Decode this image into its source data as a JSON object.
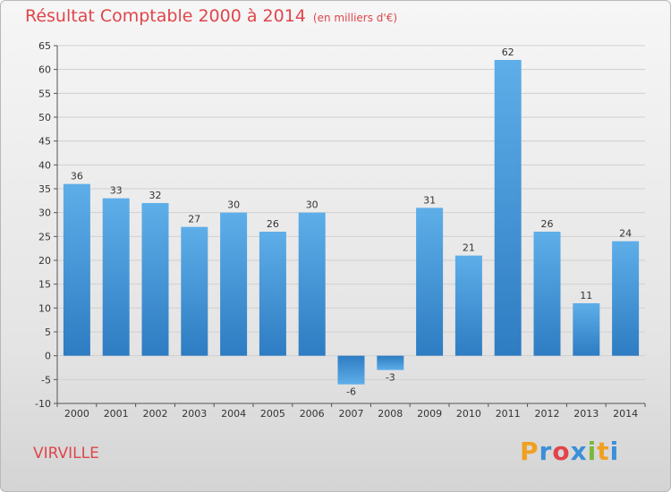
{
  "chart_data": {
    "type": "bar",
    "title": "Résultat Comptable 2000 à 2014",
    "subtitle": "(en milliers d'€)",
    "categories": [
      "2000",
      "2001",
      "2002",
      "2003",
      "2004",
      "2005",
      "2006",
      "2007",
      "2008",
      "2009",
      "2010",
      "2011",
      "2012",
      "2013",
      "2014"
    ],
    "values": [
      36,
      33,
      32,
      27,
      30,
      26,
      30,
      -6,
      -3,
      31,
      21,
      62,
      26,
      11,
      24
    ],
    "ylim": [
      -10,
      65
    ],
    "yticks": [
      -10,
      -5,
      0,
      5,
      10,
      15,
      20,
      25,
      30,
      35,
      40,
      45,
      50,
      55,
      60,
      65
    ],
    "grid": true,
    "bar_color": "#3a8fd8",
    "title_color": "#e0454b"
  },
  "commune": "VIRVILLE",
  "logo": {
    "text": "Proxiti",
    "letters": [
      "P",
      "r",
      "o",
      "x",
      "i",
      "t",
      "i"
    ],
    "colors": [
      "#f0a020",
      "#3a8fd8",
      "#e0454b",
      "#3a8fd8",
      "#7ab83a",
      "#f0a020",
      "#3a8fd8"
    ]
  }
}
